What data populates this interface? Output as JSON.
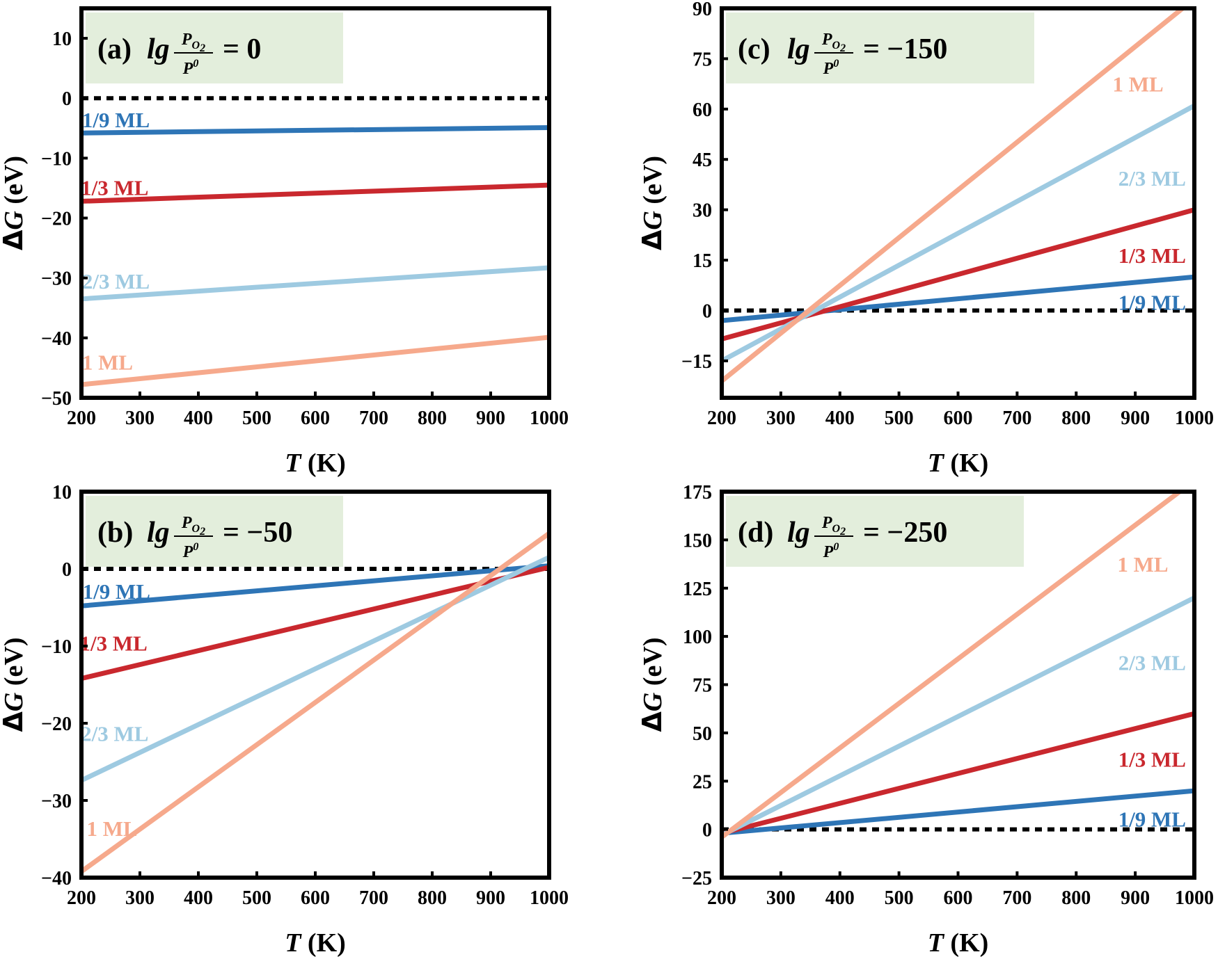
{
  "figure": {
    "colors": {
      "ml_1_9": "#2e75b6",
      "ml_1_3": "#c9282e",
      "ml_2_3": "#9ecae1",
      "ml_1": "#f6a98c",
      "zero_line": "#000000",
      "title_box": "#e3eedc"
    }
  },
  "chart_data": [
    {
      "id": "a",
      "type": "line",
      "title": {
        "prefix": "(a)",
        "lg": "lg",
        "numerator": "P",
        "num_sub": "O",
        "num_sub2": "2",
        "denominator": "P",
        "den_sup": "0",
        "equals": "= 0"
      },
      "xlabel": {
        "italic": "T",
        "unit": " (K)"
      },
      "ylabel": {
        "italic": "G",
        "delta": "Δ",
        "unit": " (eV)"
      },
      "xlim": [
        200,
        1000
      ],
      "ylim": [
        -50,
        15
      ],
      "xticks": [
        200,
        300,
        400,
        500,
        600,
        700,
        800,
        900,
        1000
      ],
      "yticks": [
        10,
        0,
        -10,
        -20,
        -30,
        -40,
        -50
      ],
      "ytick_labels": [
        "10",
        "0",
        "−10",
        "−20",
        "−30",
        "−40",
        "−50"
      ],
      "zero_line": 0,
      "series": [
        {
          "name": "1/9 ML",
          "key": "ml_1_9",
          "x": [
            200,
            1000
          ],
          "y": [
            -5.8,
            -4.9
          ],
          "label_at": [
            201,
            -3.6
          ]
        },
        {
          "name": "1/3 ML",
          "key": "ml_1_3",
          "x": [
            200,
            1000
          ],
          "y": [
            -17.2,
            -14.5
          ],
          "label_at": [
            199,
            -14.9
          ]
        },
        {
          "name": "2/3 ML",
          "key": "ml_2_3",
          "x": [
            200,
            1000
          ],
          "y": [
            -33.5,
            -28.3
          ],
          "label_at": [
            201,
            -30.5
          ]
        },
        {
          "name": "1 ML",
          "key": "ml_1",
          "x": [
            200,
            1000
          ],
          "y": [
            -47.8,
            -39.9
          ],
          "label_at": [
            201,
            -44.0
          ]
        }
      ]
    },
    {
      "id": "c",
      "type": "line",
      "title": {
        "prefix": "(c)",
        "lg": "lg",
        "numerator": "P",
        "num_sub": "O",
        "num_sub2": "2",
        "denominator": "P",
        "den_sup": "0",
        "equals": "= −150"
      },
      "xlabel": {
        "italic": "T",
        "unit": " (K)"
      },
      "ylabel": {
        "italic": "G",
        "delta": "Δ",
        "unit": " (eV)"
      },
      "xlim": [
        200,
        1000
      ],
      "ylim": [
        -26,
        90
      ],
      "xticks": [
        200,
        300,
        400,
        500,
        600,
        700,
        800,
        900,
        1000
      ],
      "yticks": [
        90,
        75,
        60,
        45,
        30,
        15,
        0,
        -15
      ],
      "ytick_labels": [
        "90",
        "75",
        "60",
        "45",
        "30",
        "15",
        "0",
        "−15"
      ],
      "zero_line": 0,
      "series": [
        {
          "name": "1/9 ML",
          "key": "ml_1_9",
          "x": [
            200,
            1000
          ],
          "y": [
            -3,
            10
          ],
          "label_at": [
            1000,
            2.5
          ]
        },
        {
          "name": "1/3 ML",
          "key": "ml_1_3",
          "x": [
            200,
            1000
          ],
          "y": [
            -8.5,
            30
          ],
          "label_at": [
            1000,
            16.5
          ]
        },
        {
          "name": "2/3 ML",
          "key": "ml_2_3",
          "x": [
            200,
            1000
          ],
          "y": [
            -15,
            61
          ],
          "label_at": [
            1000,
            39.5
          ]
        },
        {
          "name": "1 ML",
          "key": "ml_1",
          "x": [
            200,
            980
          ],
          "y": [
            -21,
            90
          ],
          "label_at": [
            962,
            67.5
          ]
        }
      ]
    },
    {
      "id": "b",
      "type": "line",
      "title": {
        "prefix": "(b)",
        "lg": "lg",
        "numerator": "P",
        "num_sub": "O",
        "num_sub2": "2",
        "denominator": "P",
        "den_sup": "0",
        "equals": "= −50"
      },
      "xlabel": {
        "italic": "T",
        "unit": " (K)"
      },
      "ylabel": {
        "italic": "G",
        "delta": "Δ",
        "unit": " (eV)"
      },
      "xlim": [
        200,
        1000
      ],
      "ylim": [
        -40,
        10
      ],
      "xticks": [
        200,
        300,
        400,
        500,
        600,
        700,
        800,
        900,
        1000
      ],
      "yticks": [
        10,
        0,
        -10,
        -20,
        -30,
        -40
      ],
      "ytick_labels": [
        "10",
        "0",
        "−10",
        "−20",
        "−30",
        "−40"
      ],
      "zero_line": 0,
      "series": [
        {
          "name": "1/9 ML",
          "key": "ml_1_9",
          "x": [
            200,
            1000
          ],
          "y": [
            -4.8,
            0.4
          ],
          "label_at": [
            202,
            -2.9
          ]
        },
        {
          "name": "1/3 ML",
          "key": "ml_1_3",
          "x": [
            200,
            1000
          ],
          "y": [
            -14.2,
            0.2
          ],
          "label_at": [
            197,
            -9.6
          ]
        },
        {
          "name": "2/3 ML",
          "key": "ml_2_3",
          "x": [
            200,
            1000
          ],
          "y": [
            -27.4,
            1.5
          ],
          "label_at": [
            199,
            -21.3
          ]
        },
        {
          "name": "1 ML",
          "key": "ml_1",
          "x": [
            200,
            1000
          ],
          "y": [
            -39.2,
            4.6
          ],
          "label_at": [
            209,
            -33.6
          ]
        }
      ]
    },
    {
      "id": "d",
      "type": "line",
      "title": {
        "prefix": "(d)",
        "lg": "lg",
        "numerator": "P",
        "num_sub": "O",
        "num_sub2": "2",
        "denominator": "P",
        "den_sup": "0",
        "equals": "= −250"
      },
      "xlabel": {
        "italic": "T",
        "unit": " (K)"
      },
      "ylabel": {
        "italic": "G",
        "delta": "Δ",
        "unit": " (eV)"
      },
      "xlim": [
        200,
        1000
      ],
      "ylim": [
        -25,
        175
      ],
      "xticks": [
        200,
        300,
        400,
        500,
        600,
        700,
        800,
        900,
        1000
      ],
      "yticks": [
        175,
        150,
        125,
        100,
        75,
        50,
        25,
        0,
        -25
      ],
      "ytick_labels": [
        "175",
        "150",
        "125",
        "100",
        "75",
        "50",
        "25",
        "0",
        "−25"
      ],
      "zero_line": 0,
      "series": [
        {
          "name": "1/9 ML",
          "key": "ml_1_9",
          "x": [
            200,
            1000
          ],
          "y": [
            -2,
            20
          ],
          "label_at": [
            1000,
            5.5
          ]
        },
        {
          "name": "1/3 ML",
          "key": "ml_1_3",
          "x": [
            200,
            1000
          ],
          "y": [
            -2,
            60
          ],
          "label_at": [
            1000,
            36.5
          ]
        },
        {
          "name": "2/3 ML",
          "key": "ml_2_3",
          "x": [
            200,
            1000
          ],
          "y": [
            -3,
            120
          ],
          "label_at": [
            1000,
            86.5
          ]
        },
        {
          "name": "1 ML",
          "key": "ml_1",
          "x": [
            200,
            975
          ],
          "y": [
            -4,
            175
          ],
          "label_at": [
            970,
            137.5
          ]
        }
      ]
    }
  ]
}
